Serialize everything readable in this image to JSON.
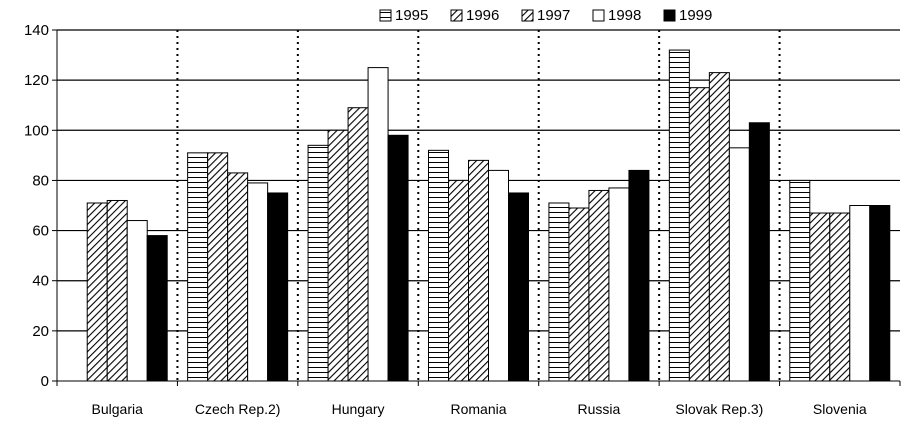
{
  "chart_data": {
    "type": "bar",
    "title": "",
    "xlabel": "",
    "ylabel": "",
    "ylim": [
      0,
      140
    ],
    "yticks": [
      0,
      20,
      40,
      60,
      80,
      100,
      120,
      140
    ],
    "grid": true,
    "legend_position": "top-right",
    "categories": [
      "Bulgaria",
      "Czech Rep.2)",
      "Hungary",
      "Romania",
      "Russia",
      "Slovak Rep.3)",
      "Slovenia"
    ],
    "series": [
      {
        "name": "1995",
        "pattern": "horizontal-lines",
        "values": [
          null,
          91,
          94,
          92,
          71,
          132,
          80
        ]
      },
      {
        "name": "1996",
        "pattern": "diagonal-lines",
        "values": [
          71,
          91,
          100,
          80,
          69,
          117,
          67
        ]
      },
      {
        "name": "1997",
        "pattern": "diagonal-lines",
        "values": [
          72,
          83,
          109,
          88,
          76,
          123,
          67
        ]
      },
      {
        "name": "1998",
        "pattern": "white",
        "values": [
          64,
          79,
          125,
          84,
          77,
          93,
          70
        ]
      },
      {
        "name": "1999",
        "pattern": "black",
        "values": [
          58,
          75,
          98,
          75,
          84,
          103,
          70
        ]
      }
    ],
    "colors": {
      "stroke": "#000000",
      "background": "#ffffff",
      "solid": "#000000"
    }
  }
}
